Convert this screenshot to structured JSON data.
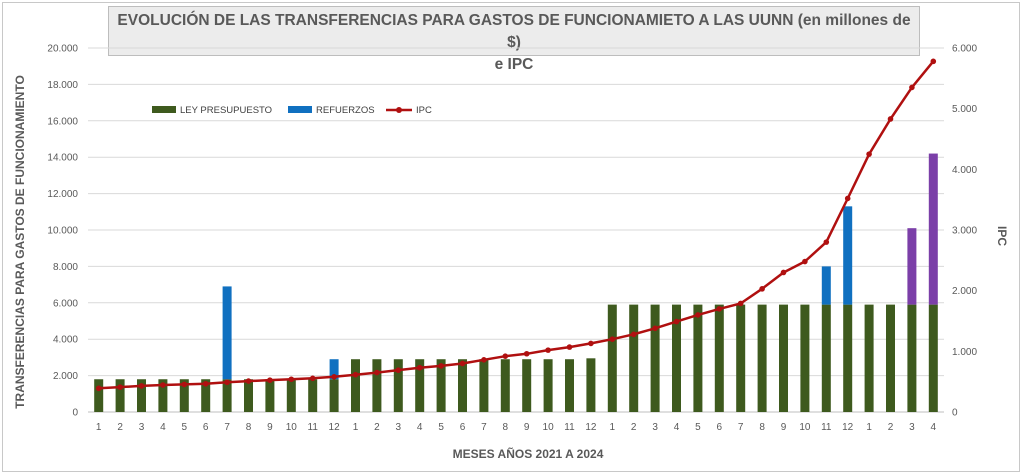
{
  "chart_data": {
    "type": "bar",
    "title_line1": "EVOLUCIÓN DE LAS TRANSFERENCIAS PARA GASTOS DE FUNCIONAMIETO A LAS UUNN (en millones de $)",
    "title_line2": "e IPC",
    "xlabel": "MESES AÑOS 2021  A 2024",
    "ylabel": "TRANSFERENCIAS PARA GASTOS DE FUNCIONAMIENTO",
    "y2label": "IPC",
    "ylim": [
      0,
      20000
    ],
    "y2lim": [
      0,
      6000
    ],
    "yticks": [
      "0",
      "2.000",
      "4.000",
      "6.000",
      "8.000",
      "10.000",
      "12.000",
      "14.000",
      "16.000",
      "18.000",
      "20.000"
    ],
    "y2ticks": [
      "0",
      "1.000",
      "2.000",
      "3.000",
      "4.000",
      "5.000",
      "6.000"
    ],
    "categories": [
      "1",
      "2",
      "3",
      "4",
      "5",
      "6",
      "7",
      "8",
      "9",
      "10",
      "11",
      "12",
      "1",
      "2",
      "3",
      "4",
      "5",
      "6",
      "7",
      "8",
      "9",
      "10",
      "11",
      "12",
      "1",
      "2",
      "3",
      "4",
      "5",
      "6",
      "7",
      "8",
      "9",
      "10",
      "11",
      "12",
      "1",
      "2",
      "3",
      "4"
    ],
    "legend_position": "top-left",
    "series": [
      {
        "name": "LEY PRESUPUESTO",
        "kind": "bar",
        "color": "#3e5a1e",
        "values": [
          1800,
          1800,
          1800,
          1800,
          1800,
          1800,
          1800,
          1800,
          1800,
          1800,
          1800,
          1800,
          2900,
          2900,
          2900,
          2900,
          2900,
          2900,
          2900,
          2900,
          2900,
          2900,
          2900,
          2950,
          5900,
          5900,
          5900,
          5900,
          5900,
          5900,
          5900,
          5900,
          5900,
          5900,
          5900,
          5900,
          5900,
          5900,
          5900,
          5900
        ]
      },
      {
        "name": "REFUERZOS",
        "kind": "stacked-bar",
        "color": "#1070c0",
        "values": [
          0,
          0,
          0,
          0,
          0,
          0,
          5100,
          0,
          0,
          0,
          0,
          1100,
          0,
          0,
          0,
          0,
          0,
          0,
          0,
          0,
          0,
          0,
          0,
          0,
          0,
          0,
          0,
          0,
          0,
          0,
          0,
          0,
          0,
          0,
          2100,
          5400,
          0,
          0,
          0,
          0
        ]
      },
      {
        "name": "",
        "kind": "stacked-bar",
        "color": "#7b3fa8",
        "values": [
          0,
          0,
          0,
          0,
          0,
          0,
          0,
          0,
          0,
          0,
          0,
          0,
          0,
          0,
          0,
          0,
          0,
          0,
          0,
          0,
          0,
          0,
          0,
          0,
          0,
          0,
          0,
          0,
          0,
          0,
          0,
          0,
          0,
          0,
          0,
          0,
          0,
          0,
          4200,
          8300
        ]
      },
      {
        "name": "IPC",
        "kind": "line",
        "axis": "right",
        "color": "#b01010",
        "values": [
          390,
          410,
          430,
          445,
          455,
          465,
          490,
          510,
          525,
          540,
          555,
          580,
          615,
          650,
          690,
          730,
          760,
          800,
          860,
          920,
          960,
          1020,
          1070,
          1130,
          1200,
          1280,
          1380,
          1490,
          1600,
          1700,
          1790,
          2030,
          2300,
          2480,
          2800,
          3520,
          4250,
          4830,
          5350,
          5780
        ]
      }
    ]
  }
}
